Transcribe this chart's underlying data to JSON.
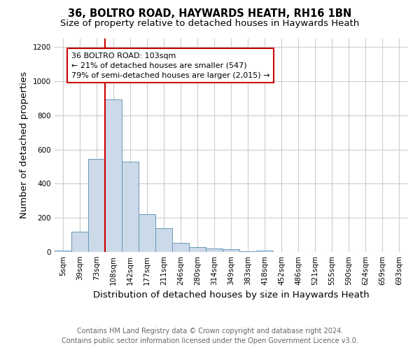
{
  "title1": "36, BOLTRO ROAD, HAYWARDS HEATH, RH16 1BN",
  "title2": "Size of property relative to detached houses in Haywards Heath",
  "xlabel": "Distribution of detached houses by size in Haywards Heath",
  "ylabel": "Number of detached properties",
  "footer1": "Contains HM Land Registry data © Crown copyright and database right 2024.",
  "footer2": "Contains public sector information licensed under the Open Government Licence v3.0.",
  "annotation_line1": "36 BOLTRO ROAD: 103sqm",
  "annotation_line2": "← 21% of detached houses are smaller (547)",
  "annotation_line3": "79% of semi-detached houses are larger (2,015) →",
  "property_size_index": 3.0,
  "bar_heights": [
    10,
    120,
    547,
    893,
    530,
    222,
    138,
    52,
    30,
    20,
    15,
    5,
    8,
    0,
    0,
    0,
    0,
    0,
    0,
    0,
    0
  ],
  "bar_color": "#ccd9e8",
  "bar_edge_color": "#6699bb",
  "vline_color": "#cc0000",
  "annotation_box_color": "#cc0000",
  "ylim": [
    0,
    1250
  ],
  "yticks": [
    0,
    200,
    400,
    600,
    800,
    1000,
    1200
  ],
  "xtick_labels": [
    "5sqm",
    "39sqm",
    "73sqm",
    "108sqm",
    "142sqm",
    "177sqm",
    "211sqm",
    "246sqm",
    "280sqm",
    "314sqm",
    "349sqm",
    "383sqm",
    "418sqm",
    "452sqm",
    "486sqm",
    "521sqm",
    "555sqm",
    "590sqm",
    "624sqm",
    "659sqm",
    "693sqm"
  ],
  "grid_color": "#cccccc",
  "background_color": "#ffffff",
  "title_fontsize": 10.5,
  "subtitle_fontsize": 9.5,
  "axis_label_fontsize": 9.5,
  "tick_fontsize": 7.5,
  "footer_fontsize": 7,
  "annotation_fontsize": 8
}
